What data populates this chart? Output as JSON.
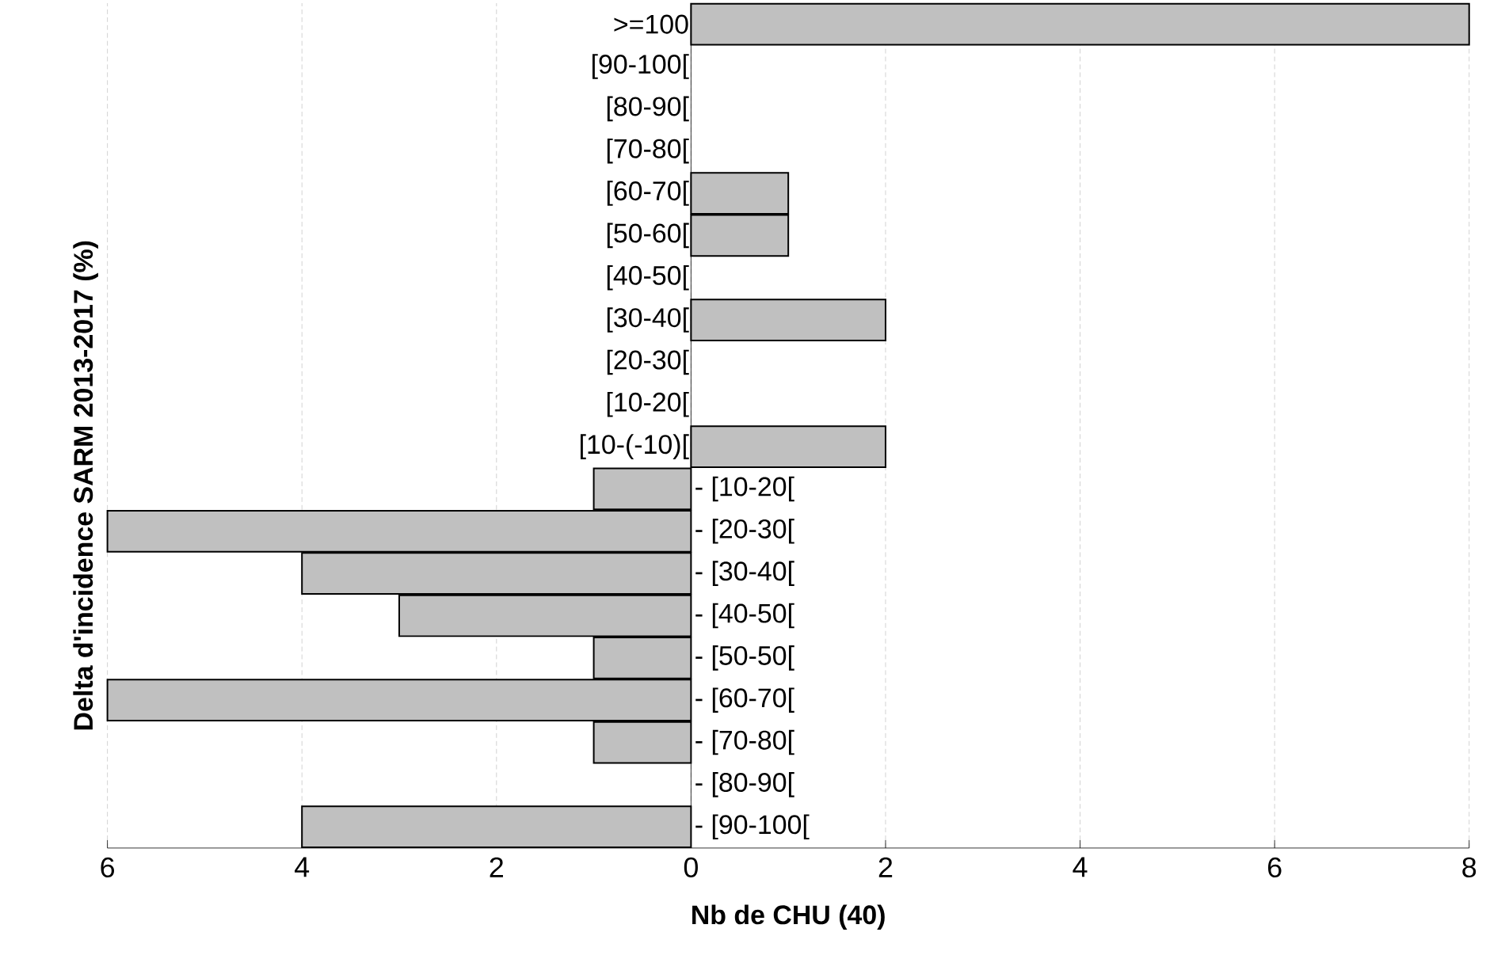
{
  "chart_data": {
    "type": "bar",
    "orientation": "horizontal",
    "xlabel": "Nb de CHU (40)",
    "ylabel": "Delta d'incidence SARM 2013-2017 (%)",
    "categories": [
      ">=100",
      "[90-100[",
      "[80-90[",
      "[70-80[",
      "[60-70[",
      "[50-60[",
      "[40-50[",
      "[30-40[",
      "[20-30[",
      "[10-20[",
      "[10-(-10)[",
      "- [10-20[",
      "- [20-30[",
      "- [30-40[",
      "- [40-50[",
      "- [50-50[",
      "- [60-70[",
      "- [70-80[",
      "- [80-90[",
      "- [90-100["
    ],
    "values": [
      8,
      0,
      0,
      0,
      1,
      1,
      0,
      2,
      0,
      0,
      2,
      -1,
      -6,
      -4,
      -3,
      -1,
      -6,
      -1,
      0,
      -4
    ],
    "color": "#c0c0c0",
    "xlim": [
      -6,
      8
    ],
    "xticks": [
      {
        "value": -6,
        "label": "6"
      },
      {
        "value": -4,
        "label": "4"
      },
      {
        "value": -2,
        "label": "2"
      },
      0,
      2,
      4,
      6,
      8
    ],
    "grid": "x"
  }
}
